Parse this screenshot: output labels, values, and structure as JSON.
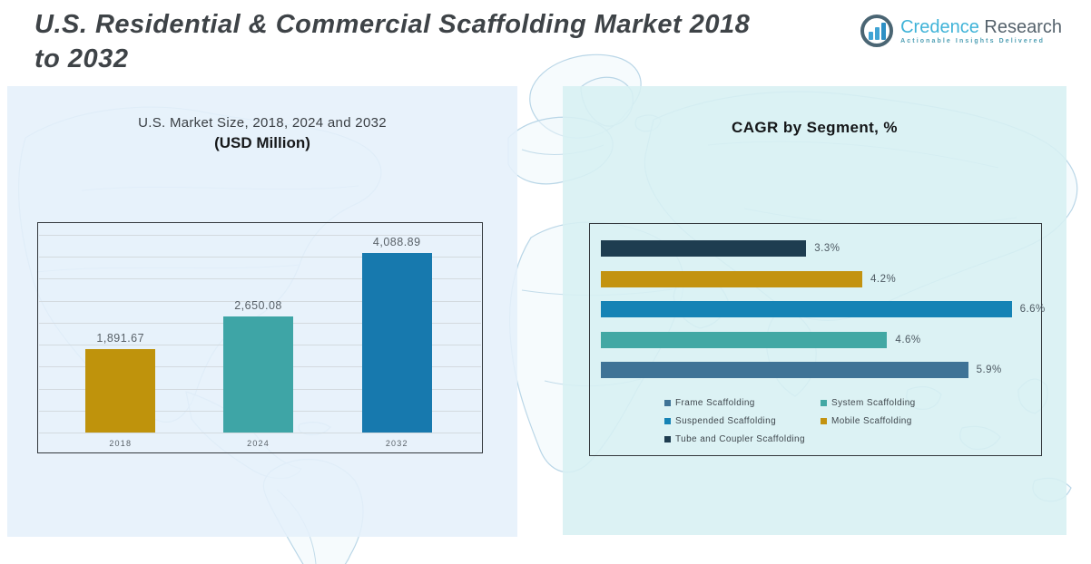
{
  "header": {
    "title_line1": "U.S. Residential & Commercial Scaffolding Market 2018",
    "title_line2": "to 2032"
  },
  "logo": {
    "brand_primary": "Credence",
    "brand_secondary": "Research",
    "tagline": "Actionable Insights Delivered",
    "icon": "bar-chart-in-circle"
  },
  "colors": {
    "title_text": "#3e4347",
    "label_gray": "#596168",
    "panel_left_bg": "#e9f1fa",
    "panel_right_bg": "#dcf2f2",
    "map_outline": "#b9d6e7",
    "box_border": "#33383c"
  },
  "chart_data": [
    {
      "type": "bar",
      "title": "U.S. Market Size, 2018, 2024 and 2032",
      "subtitle": "(USD Million)",
      "categories": [
        "2018",
        "2024",
        "2032"
      ],
      "values": [
        1891.67,
        2650.08,
        4088.89
      ],
      "value_labels": [
        "1,891.67",
        "2,650.08",
        "4,088.89"
      ],
      "bar_colors": [
        "#bf930c",
        "#3ea5a6",
        "#1779ae"
      ],
      "xlabel": "",
      "ylabel": "",
      "ylim": [
        0,
        4500
      ],
      "gridline_step": 500,
      "grid": true,
      "legend_position": "none"
    },
    {
      "type": "bar-horizontal",
      "title": "CAGR by Segment, %",
      "categories": [
        "Tube and Coupler Scaffolding",
        "Mobile Scaffolding",
        "Suspended Scaffolding",
        "System Scaffolding",
        "Frame Scaffolding"
      ],
      "values": [
        3.3,
        4.2,
        6.6,
        4.6,
        5.9
      ],
      "value_labels": [
        "3.3%",
        "4.2%",
        "6.6%",
        "4.6%",
        "5.9%"
      ],
      "bar_colors": [
        "#1e3d50",
        "#c39310",
        "#1583b5",
        "#42a8a4",
        "#3f7396"
      ],
      "xlabel": "",
      "ylabel": "",
      "xlim": [
        0,
        7
      ],
      "grid": false,
      "legend_position": "bottom-inside",
      "legend": [
        {
          "label": "Frame Scaffolding",
          "color": "#3f7396"
        },
        {
          "label": "System Scaffolding",
          "color": "#42a8a4"
        },
        {
          "label": "Suspended Scaffolding",
          "color": "#1583b5"
        },
        {
          "label": "Mobile Scaffolding",
          "color": "#c39310"
        },
        {
          "label": "Tube and Coupler Scaffolding",
          "color": "#1e3d50"
        }
      ]
    }
  ]
}
